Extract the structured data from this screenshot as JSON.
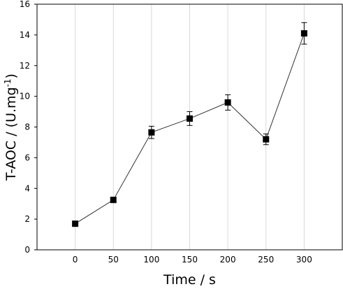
{
  "chart_data": {
    "type": "line",
    "xlabel": "Time / s",
    "ylabel_main": "T-AOC / (U.mg",
    "ylabel_sup": "-1",
    "ylabel_close": ")",
    "xlim": [
      -50,
      350
    ],
    "ylim": [
      0,
      16
    ],
    "x_ticks": [
      0,
      50,
      100,
      150,
      200,
      250,
      300
    ],
    "y_ticks": [
      0,
      2,
      4,
      6,
      8,
      10,
      12,
      14,
      16
    ],
    "grid": "vertical",
    "x": [
      0,
      50,
      100,
      150,
      200,
      250,
      300
    ],
    "y": [
      1.7,
      3.25,
      7.65,
      8.55,
      9.6,
      7.2,
      14.1
    ],
    "error": [
      0.05,
      0.05,
      0.4,
      0.45,
      0.5,
      0.35,
      0.7
    ],
    "colors": {
      "line": "#333333",
      "marker": "#000000",
      "grid": "#d9d9d9"
    }
  }
}
